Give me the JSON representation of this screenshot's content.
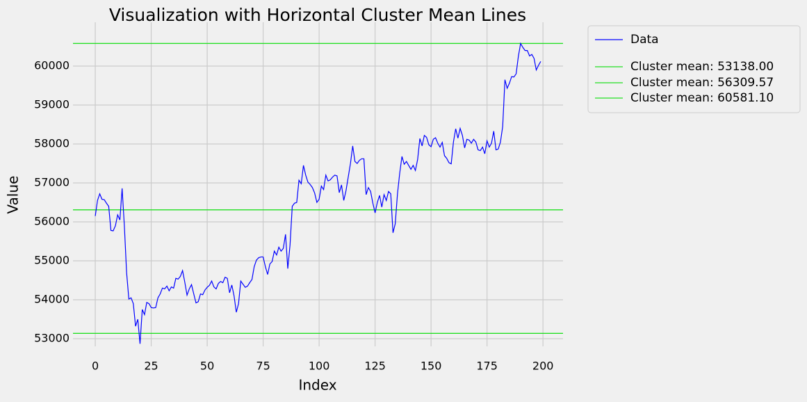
{
  "chart_data": {
    "type": "line",
    "title": "Visualization with Horizontal Cluster Mean Lines",
    "x_label": "Index",
    "y_label": "Value",
    "x": [
      0,
      1,
      2,
      3,
      4,
      5,
      6,
      7,
      8,
      9,
      10,
      11,
      12,
      13,
      14,
      15,
      16,
      17,
      18,
      19,
      20,
      21,
      22,
      23,
      24,
      25,
      26,
      27,
      28,
      29,
      30,
      31,
      32,
      33,
      34,
      35,
      36,
      37,
      38,
      39,
      40,
      41,
      42,
      43,
      44,
      45,
      46,
      47,
      48,
      49,
      50,
      51,
      52,
      53,
      54,
      55,
      56,
      57,
      58,
      59,
      60,
      61,
      62,
      63,
      64,
      65,
      66,
      67,
      68,
      69,
      70,
      71,
      72,
      73,
      74,
      75,
      76,
      77,
      78,
      79,
      80,
      81,
      82,
      83,
      84,
      85,
      86,
      87,
      88,
      89,
      90,
      91,
      92,
      93,
      94,
      95,
      96,
      97,
      98,
      99,
      100,
      101,
      102,
      103,
      104,
      105,
      106,
      107,
      108,
      109,
      110,
      111,
      112,
      113,
      114,
      115,
      116,
      117,
      118,
      119,
      120,
      121,
      122,
      123,
      124,
      125,
      126,
      127,
      128,
      129,
      130,
      131,
      132,
      133,
      134,
      135,
      136,
      137,
      138,
      139,
      140,
      141,
      142,
      143,
      144,
      145,
      146,
      147,
      148,
      149,
      150,
      151,
      152,
      153,
      154,
      155,
      156,
      157,
      158,
      159,
      160,
      161,
      162,
      163,
      164,
      165,
      166,
      167,
      168,
      169,
      170,
      171,
      172,
      173,
      174,
      175,
      176,
      177,
      178,
      179,
      180,
      181,
      182,
      183,
      184,
      185,
      186,
      187,
      188,
      189,
      190,
      191,
      192,
      193,
      194,
      195,
      196,
      197,
      198,
      199
    ],
    "series": [
      {
        "name": "Data",
        "color": "#0000ff",
        "values": [
          56150,
          56550,
          56720,
          56580,
          56570,
          56480,
          56400,
          55780,
          55770,
          55900,
          56180,
          56050,
          56860,
          55900,
          54700,
          54020,
          54050,
          53900,
          53320,
          53500,
          52870,
          53750,
          53620,
          53930,
          53900,
          53800,
          53790,
          53800,
          54050,
          54150,
          54300,
          54280,
          54350,
          54230,
          54330,
          54300,
          54550,
          54530,
          54600,
          54750,
          54450,
          54120,
          54280,
          54390,
          54150,
          53920,
          53950,
          54150,
          54130,
          54250,
          54320,
          54370,
          54480,
          54330,
          54280,
          54420,
          54470,
          54440,
          54580,
          54550,
          54180,
          54380,
          54100,
          53680,
          53900,
          54480,
          54400,
          54320,
          54350,
          54440,
          54520,
          54850,
          55020,
          55080,
          55100,
          55100,
          54850,
          54650,
          54920,
          54980,
          55250,
          55150,
          55350,
          55250,
          55320,
          55680,
          54800,
          55400,
          56400,
          56480,
          56500,
          57070,
          56980,
          57450,
          57200,
          57020,
          56960,
          56880,
          56740,
          56500,
          56580,
          56920,
          56830,
          57200,
          57050,
          57080,
          57150,
          57200,
          57180,
          56750,
          56950,
          56550,
          56800,
          57150,
          57500,
          57950,
          57550,
          57500,
          57580,
          57620,
          57620,
          56700,
          56880,
          56780,
          56480,
          56230,
          56500,
          56680,
          56380,
          56700,
          56550,
          56780,
          56720,
          55720,
          55950,
          56720,
          57250,
          57680,
          57480,
          57550,
          57450,
          57350,
          57450,
          57320,
          57600,
          58140,
          57950,
          58220,
          58170,
          57980,
          57930,
          58120,
          58160,
          58020,
          57920,
          58040,
          57700,
          57630,
          57520,
          57490,
          58050,
          58390,
          58150,
          58400,
          58220,
          57900,
          58120,
          58100,
          58020,
          58120,
          58050,
          57850,
          57830,
          57920,
          57750,
          58080,
          57920,
          58020,
          58330,
          57850,
          57870,
          58050,
          58450,
          59650,
          59430,
          59560,
          59730,
          59720,
          59800,
          60250,
          60581,
          60480,
          60400,
          60400,
          60260,
          60300,
          60200,
          59900,
          60020,
          60120
        ]
      }
    ],
    "hlines": [
      {
        "name": "Cluster mean: 53138.00",
        "color": "#22e022",
        "value": 53138.0
      },
      {
        "name": "Cluster mean: 56309.57",
        "color": "#22e022",
        "value": 56309.57
      },
      {
        "name": "Cluster mean: 60581.10",
        "color": "#22e022",
        "value": 60581.1
      }
    ],
    "xlim": [
      -9.95,
      208.95
    ],
    "xticks": [
      0,
      25,
      50,
      75,
      100,
      125,
      150,
      175,
      200
    ],
    "ylim": [
      52804,
      61125
    ],
    "yticks": [
      53000,
      54000,
      55000,
      56000,
      57000,
      58000,
      59000,
      60000
    ],
    "grid": true,
    "legend": "outside upper right"
  }
}
